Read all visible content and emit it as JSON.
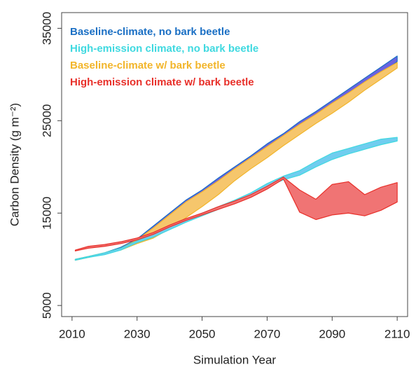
{
  "chart_data": {
    "type": "band",
    "xlabel": "Simulation Year",
    "ylabel": "Carbon Density (g m⁻²)",
    "x": [
      2011,
      2015,
      2020,
      2025,
      2030,
      2035,
      2040,
      2045,
      2050,
      2055,
      2060,
      2065,
      2070,
      2075,
      2080,
      2085,
      2090,
      2095,
      2100,
      2105,
      2110
    ],
    "xlim": [
      2006.8,
      2113.2
    ],
    "xticks": [
      2010,
      2030,
      2050,
      2070,
      2090,
      2110
    ],
    "ylim": [
      3800,
      36700
    ],
    "yticks": [
      5000,
      15000,
      25000,
      35000
    ],
    "series": [
      {
        "name": "Baseline-climate, no bark beetle",
        "color": "#1a6fc4",
        "fill": "#6a62e0",
        "lower": [
          9900,
          10200,
          10600,
          11100,
          11900,
          13000,
          14400,
          15800,
          17000,
          18200,
          19400,
          20600,
          21800,
          23000,
          24300,
          25300,
          26600,
          27700,
          28900,
          30000,
          31400
        ],
        "upper": [
          10000,
          10300,
          10700,
          11300,
          12200,
          13600,
          15000,
          16400,
          17500,
          18800,
          20000,
          21200,
          22500,
          23600,
          24900,
          26000,
          27200,
          28400,
          29600,
          30800,
          32000
        ]
      },
      {
        "name": "High-emission climate, no bark beetle",
        "color": "#3fd9e0",
        "fill": "#70cdef",
        "lower": [
          9900,
          10200,
          10500,
          11000,
          11800,
          12400,
          13200,
          14000,
          14700,
          15400,
          16100,
          16900,
          17800,
          18600,
          19100,
          20000,
          20800,
          21400,
          21900,
          22400,
          22800
        ],
        "upper": [
          10000,
          10300,
          10700,
          11200,
          12000,
          12700,
          13500,
          14300,
          15000,
          15700,
          16400,
          17200,
          18200,
          19000,
          19600,
          20600,
          21500,
          22000,
          22500,
          23000,
          23200
        ]
      },
      {
        "name": "Baseline-climate w/ bark beetle",
        "color": "#f2b52a",
        "fill": "#f6c66c",
        "lower": [
          9900,
          10200,
          10600,
          11000,
          11700,
          12300,
          13300,
          14500,
          15700,
          17000,
          18500,
          19800,
          21000,
          22300,
          23500,
          24700,
          25800,
          27000,
          28300,
          29500,
          30700
        ],
        "upper": [
          10000,
          10300,
          10700,
          11200,
          12100,
          13400,
          14800,
          16200,
          17300,
          18500,
          19800,
          21000,
          22200,
          23400,
          24600,
          25700,
          26900,
          28000,
          29200,
          30300,
          31300
        ]
      },
      {
        "name": "High-emission climate w/ bark beetle",
        "color": "#e8302a",
        "fill": "#f07474",
        "lower": [
          10900,
          11200,
          11400,
          11700,
          12100,
          12700,
          13500,
          14200,
          14800,
          15400,
          16000,
          16700,
          17600,
          18700,
          15100,
          14300,
          14800,
          15000,
          14700,
          15300,
          16200
        ],
        "upper": [
          11000,
          11400,
          11600,
          11900,
          12300,
          12900,
          13700,
          14400,
          15000,
          15700,
          16300,
          17000,
          17900,
          18900,
          17500,
          16500,
          18100,
          18400,
          17000,
          17800,
          18300
        ]
      }
    ],
    "draw_order": [
      0,
      2,
      1,
      3
    ]
  }
}
